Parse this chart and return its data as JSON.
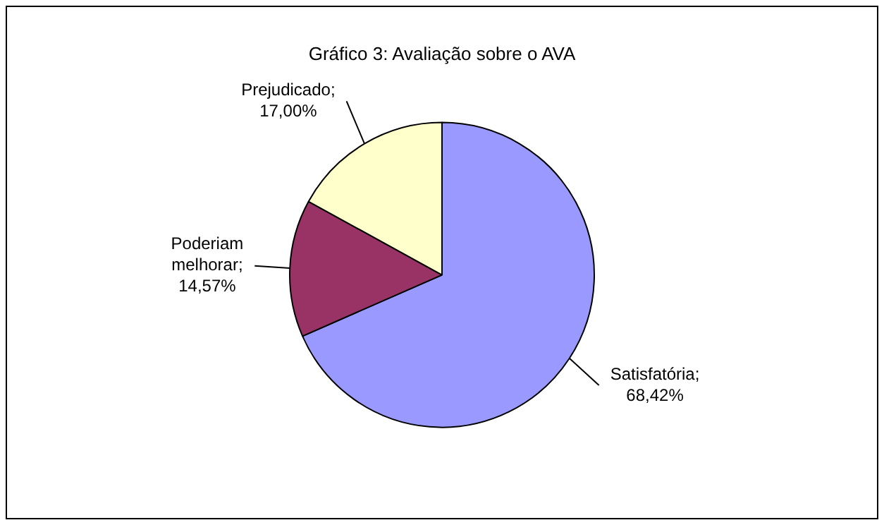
{
  "chart_data": {
    "type": "pie",
    "title": "Gráfico 3: Avaliação sobre o AVA",
    "categories": [
      "Satisfatória",
      "Poderiam melhorar",
      "Prejudicado"
    ],
    "values": [
      68.42,
      14.57,
      17.0
    ],
    "value_labels": [
      ";\n68,42%",
      ";\n14,57%",
      ";\n17,00%"
    ],
    "colors": [
      "#9999ff",
      "#993366",
      "#ffffcc"
    ],
    "legend": false
  }
}
